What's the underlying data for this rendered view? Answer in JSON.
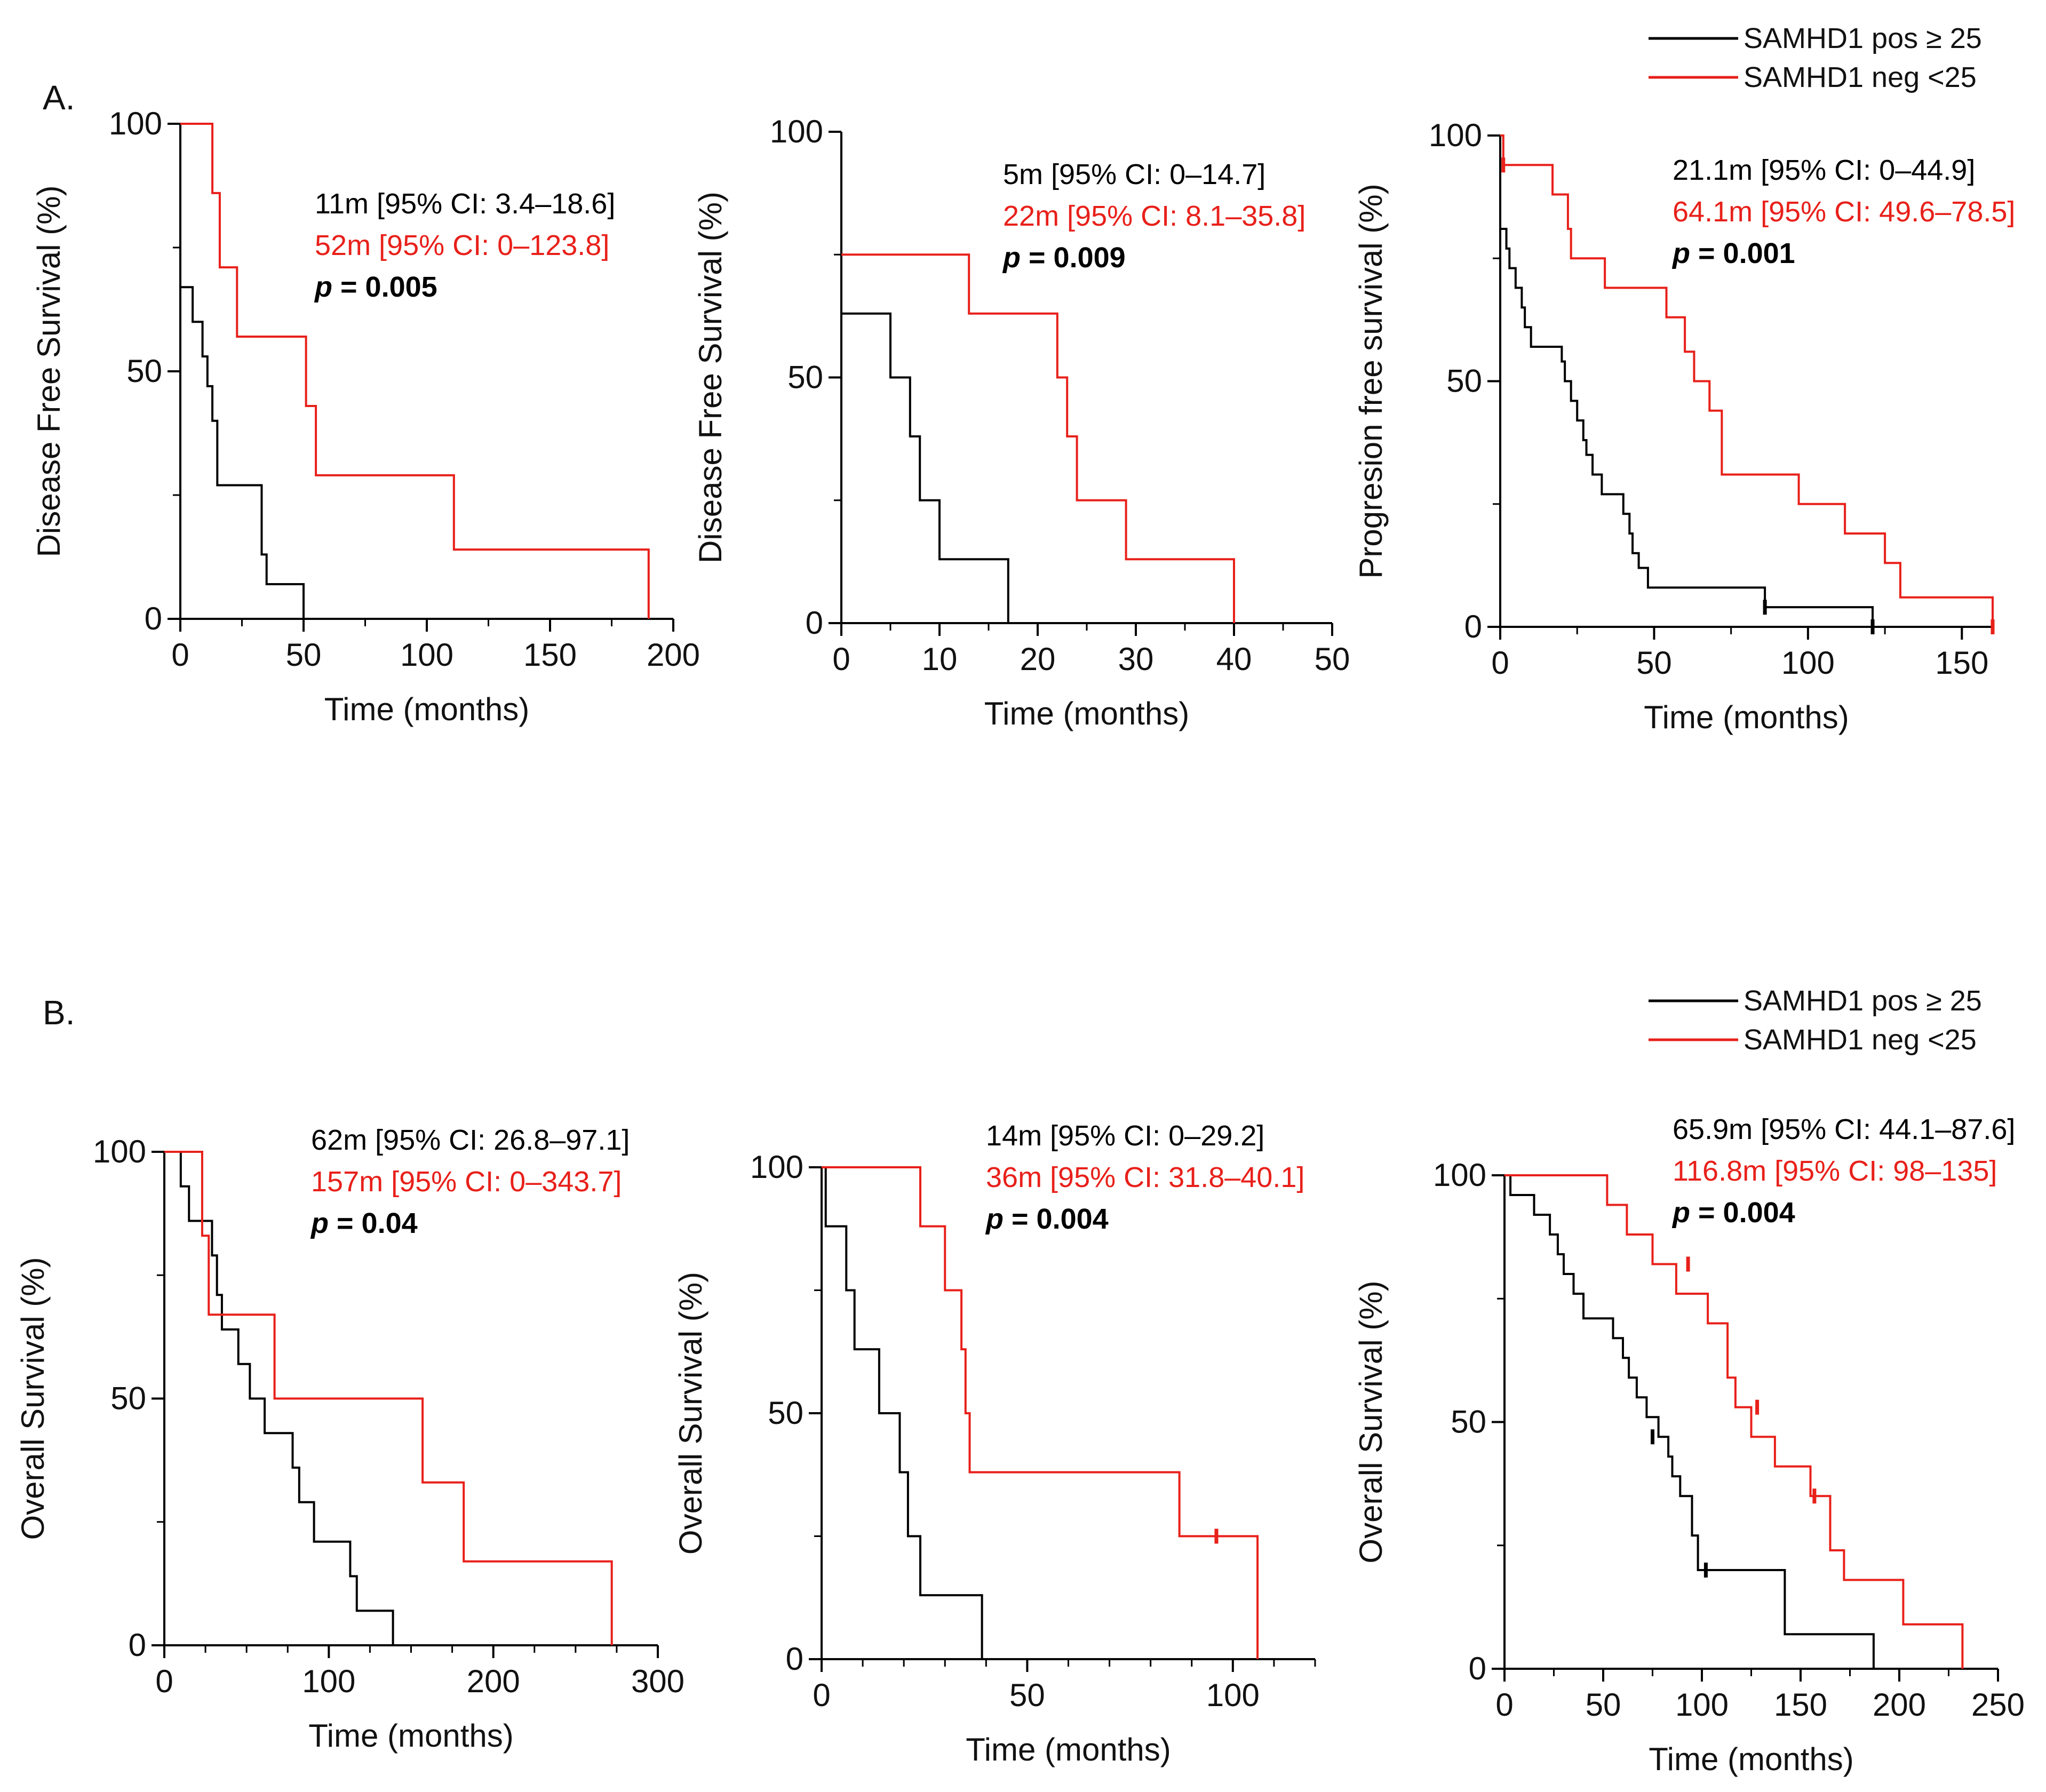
{
  "colors": {
    "pos": "#000000",
    "neg": "#e8201a",
    "axis": "#000000"
  },
  "legends": [
    {
      "entries": [
        {
          "label": "SAMHD1 pos ≥ 25",
          "series": "pos"
        },
        {
          "label": "SAMHD1 neg  <25",
          "series": "neg"
        }
      ]
    },
    {
      "entries": [
        {
          "label": "SAMHD1 pos ≥ 25",
          "series": "pos"
        },
        {
          "label": "SAMHD1 neg  <25",
          "series": "neg"
        }
      ]
    }
  ],
  "panel_labels": [
    "A.",
    "B."
  ],
  "chart_data": [
    {
      "type": "line",
      "step": true,
      "row": "A.",
      "xlabel": "Time (months)",
      "ylabel": "Disease  Free Survival (%)",
      "xlim": [
        0,
        200
      ],
      "ylim": [
        0,
        100
      ],
      "xticks": [
        0,
        50,
        100,
        150,
        200
      ],
      "yticks": [
        0,
        50,
        100
      ],
      "xminor": [
        25,
        75,
        125,
        175
      ],
      "yminor": [
        25,
        75
      ],
      "annotations": [
        {
          "text": "11m [95% CI: 3.4–18.6]",
          "series": "pos"
        },
        {
          "text": "52m [95% CI: 0–123.8]",
          "series": "neg"
        }
      ],
      "p_label": "p",
      "p_value": " = 0.005",
      "series": [
        {
          "name": "SAMHD1 pos ≥ 25",
          "key": "pos",
          "x": [
            0,
            5,
            9,
            11,
            13,
            15,
            33,
            35,
            50
          ],
          "y": [
            67,
            60,
            53,
            47,
            40,
            27,
            13,
            7,
            0
          ],
          "censored": []
        },
        {
          "name": "SAMHD1 neg  <25",
          "key": "neg",
          "x": [
            0,
            13,
            16,
            23,
            51,
            55,
            111,
            190
          ],
          "y": [
            100,
            86,
            71,
            57,
            43,
            29,
            14,
            0
          ],
          "censored": []
        }
      ]
    },
    {
      "type": "line",
      "step": true,
      "row": "A.",
      "xlabel": "Time (months)",
      "ylabel": "Disease  Free Survival (%)",
      "xlim": [
        0,
        50
      ],
      "ylim": [
        0,
        100
      ],
      "xticks": [
        0,
        10,
        20,
        30,
        40,
        50
      ],
      "yticks": [
        0,
        50,
        100
      ],
      "xminor": [
        5,
        15,
        25,
        35,
        45
      ],
      "yminor": [
        25,
        75
      ],
      "annotations": [
        {
          "text": "5m [95% CI: 0–14.7]",
          "series": "pos"
        },
        {
          "text": "22m [95% CI: 8.1–35.8]",
          "series": "neg"
        }
      ],
      "p_label": "p",
      "p_value": " = 0.009",
      "series": [
        {
          "name": "SAMHD1 pos ≥ 25",
          "key": "pos",
          "x": [
            0,
            5,
            7,
            8,
            10,
            17
          ],
          "y": [
            63,
            50,
            38,
            25,
            13,
            0
          ],
          "censored": []
        },
        {
          "name": "SAMHD1 neg  <25",
          "key": "neg",
          "x": [
            0,
            13,
            22,
            23,
            24,
            29,
            40
          ],
          "y": [
            75,
            63,
            50,
            38,
            25,
            13,
            0
          ],
          "censored": []
        }
      ]
    },
    {
      "type": "line",
      "step": true,
      "row": "A.",
      "xlabel": "Time (months)",
      "ylabel": "Progresion free survival (%)",
      "xlim": [
        0,
        160
      ],
      "ylim": [
        0,
        100
      ],
      "xticks": [
        0,
        50,
        100,
        150
      ],
      "yticks": [
        0,
        50,
        100
      ],
      "xminor": [
        25,
        75,
        125
      ],
      "yminor": [
        25,
        75
      ],
      "annotations": [
        {
          "text": "21.1m [95% CI: 0–44.9]",
          "series": "pos"
        },
        {
          "text": "64.1m [95% CI: 49.6–78.5]",
          "series": "neg"
        }
      ],
      "p_label": "p",
      "p_value": " = 0.001",
      "series": [
        {
          "name": "SAMHD1 pos ≥ 25",
          "key": "pos",
          "x": [
            0,
            2,
            3,
            5,
            7,
            8,
            10,
            20,
            21,
            23,
            25,
            27,
            28,
            30,
            33,
            40,
            42,
            43,
            45,
            48,
            50,
            53,
            86,
            121
          ],
          "y": [
            81,
            77,
            73,
            69,
            65,
            61,
            57,
            54,
            50,
            46,
            42,
            38,
            35,
            31,
            27,
            23,
            19,
            15,
            12,
            8,
            8,
            8,
            4,
            0
          ],
          "censored": [
            [
              86,
              4
            ],
            [
              121,
              0
            ]
          ]
        },
        {
          "name": "SAMHD1 neg  <25",
          "key": "neg",
          "x": [
            0,
            1,
            17,
            22,
            23,
            34,
            54,
            60,
            63,
            68,
            72,
            97,
            112,
            125,
            130,
            160
          ],
          "y": [
            100,
            94,
            88,
            81,
            75,
            69,
            63,
            56,
            50,
            44,
            31,
            25,
            19,
            13,
            6,
            0
          ],
          "censored": [
            [
              1,
              94
            ],
            [
              160,
              0
            ]
          ]
        }
      ]
    },
    {
      "type": "line",
      "step": true,
      "row": "B.",
      "xlabel": "Time (months)",
      "ylabel": "Overall Survival (%)",
      "xlim": [
        0,
        300
      ],
      "ylim": [
        0,
        100
      ],
      "xticks": [
        0,
        100,
        200,
        300
      ],
      "yticks": [
        0,
        50,
        100
      ],
      "xminor": [
        25,
        50,
        75,
        125,
        150,
        175,
        225,
        250,
        275
      ],
      "yminor": [
        25,
        75
      ],
      "annotations": [
        {
          "text": "62m [95% CI: 26.8–97.1]",
          "series": "pos"
        },
        {
          "text": "157m [95% CI: 0–343.7]",
          "series": "neg"
        }
      ],
      "p_label": "p",
      "p_value": " = 0.04",
      "series": [
        {
          "name": "SAMHD1 pos ≥ 25",
          "key": "pos",
          "x": [
            0,
            10,
            15,
            29,
            32,
            35,
            45,
            52,
            61,
            78,
            82,
            91,
            113,
            117,
            139
          ],
          "y": [
            100,
            93,
            86,
            79,
            71,
            64,
            57,
            50,
            43,
            36,
            29,
            21,
            14,
            7,
            0
          ],
          "censored": []
        },
        {
          "name": "SAMHD1 neg  <25",
          "key": "neg",
          "x": [
            0,
            23,
            27,
            67,
            157,
            182,
            272
          ],
          "y": [
            100,
            83,
            67,
            50,
            33,
            17,
            0
          ],
          "censored": []
        }
      ]
    },
    {
      "type": "line",
      "step": true,
      "row": "B.",
      "xlabel": "Time (months)",
      "ylabel": "Overall Survival (%)",
      "xlim": [
        0,
        120
      ],
      "ylim": [
        0,
        100
      ],
      "xticks": [
        0,
        50,
        100
      ],
      "yticks": [
        0,
        50,
        100
      ],
      "xminor": [
        10,
        20,
        30,
        40,
        60,
        70,
        80,
        90,
        110,
        120
      ],
      "yminor": [
        25,
        75
      ],
      "annotations": [
        {
          "text": "14m [95% CI: 0–29.2]",
          "series": "pos"
        },
        {
          "text": "36m [95% CI: 31.8–40.1]",
          "series": "neg"
        }
      ],
      "p_label": "p",
      "p_value": " = 0.004",
      "series": [
        {
          "name": "SAMHD1 pos ≥ 25",
          "key": "pos",
          "x": [
            0,
            1,
            6,
            8,
            14,
            19,
            21,
            24,
            39
          ],
          "y": [
            100,
            88,
            75,
            63,
            50,
            38,
            25,
            13,
            0
          ],
          "censored": []
        },
        {
          "name": "SAMHD1 neg  <25",
          "key": "neg",
          "x": [
            0,
            24,
            30,
            34,
            35,
            36,
            87,
            106
          ],
          "y": [
            100,
            88,
            75,
            63,
            50,
            38,
            25,
            0
          ],
          "censored": [
            [
              96,
              25
            ]
          ]
        }
      ]
    },
    {
      "type": "line",
      "step": true,
      "row": "B.",
      "xlabel": "Time  (months)",
      "ylabel": "Overall  Survival (%)",
      "xlim": [
        0,
        250
      ],
      "ylim": [
        0,
        100
      ],
      "xticks": [
        0,
        50,
        100,
        150,
        200,
        250
      ],
      "yticks": [
        0,
        50,
        100
      ],
      "xminor": [
        25,
        75,
        125,
        175,
        225
      ],
      "yminor": [
        25,
        75
      ],
      "annotations": [
        {
          "text": "65.9m [95% CI: 44.1–87.6]",
          "series": "pos"
        },
        {
          "text": "116.8m [95% CI: 98–135]",
          "series": "neg"
        }
      ],
      "p_label": "p",
      "p_value": " = 0.004",
      "series": [
        {
          "name": "SAMHD1 pos ≥ 25",
          "key": "pos",
          "x": [
            0,
            3,
            15,
            23,
            27,
            30,
            35,
            40,
            55,
            60,
            63,
            67,
            72,
            78,
            83,
            85,
            89,
            95,
            98,
            142,
            187
          ],
          "y": [
            100,
            96,
            92,
            88,
            84,
            80,
            76,
            71,
            67,
            63,
            59,
            55,
            51,
            47,
            43,
            39,
            35,
            27,
            20,
            7,
            0
          ],
          "censored": [
            [
              75,
              47
            ],
            [
              102,
              20
            ]
          ]
        },
        {
          "name": "SAMHD1 neg  <25",
          "key": "neg",
          "x": [
            0,
            52,
            62,
            75,
            87,
            103,
            113,
            117,
            125,
            137,
            155,
            165,
            172,
            202,
            232
          ],
          "y": [
            100,
            94,
            88,
            82,
            76,
            70,
            59,
            53,
            47,
            41,
            35,
            24,
            18,
            9,
            0
          ],
          "censored": [
            [
              93,
              82
            ],
            [
              128,
              53
            ],
            [
              157,
              35
            ]
          ]
        }
      ]
    }
  ]
}
